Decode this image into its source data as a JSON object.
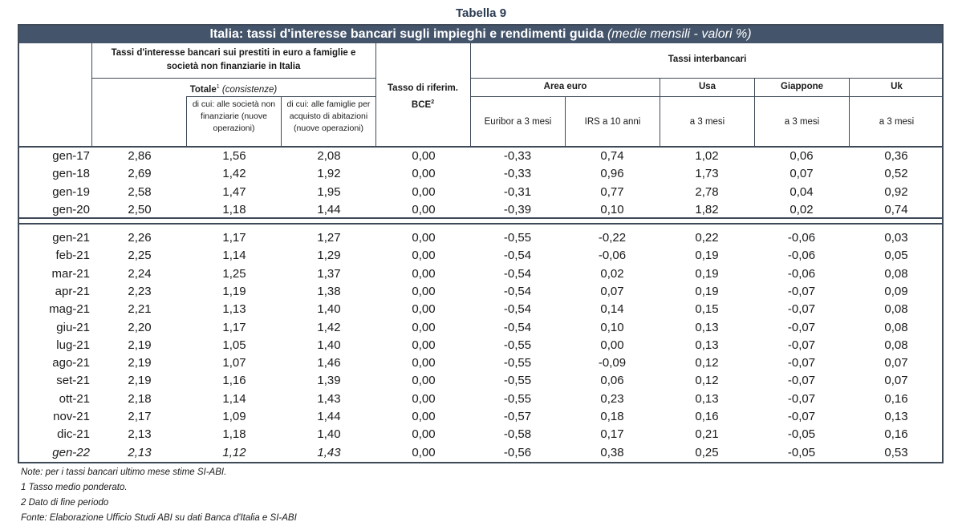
{
  "caption": "Tabella 9",
  "title": {
    "main": "Italia: tassi d'interesse bancari sugli impieghi e rendimenti guida",
    "sub": "(medie mensili - valori %)"
  },
  "headers": {
    "group_loans": "Tassi d'interesse bancari sui prestiti in euro a famiglie e società non finanziarie in Italia",
    "total": "Totale",
    "total_sup": "1",
    "total_note": "(consistenze)",
    "of_which_companies": "di cui: alle società non finanziarie (nuove operazioni)",
    "of_which_families": "di cui: alle famiglie per acquisto di abitazioni (nuove operazioni)",
    "bce": "Tasso di riferim. BCE",
    "bce_sup": "2",
    "interbank": "Tassi interbancari",
    "area_euro": "Area euro",
    "usa": "Usa",
    "giappone": "Giappone",
    "uk": "Uk",
    "euribor": "Euribor a 3 mesi",
    "irs": "IRS a 10 anni",
    "usa_sub": "a 3 mesi",
    "giappone_sub": "a 3 mesi",
    "uk_sub": "a 3 mesi"
  },
  "rows_annual": [
    {
      "label": "gen-17",
      "values": [
        "2,86",
        "1,56",
        "2,08",
        "0,00",
        "-0,33",
        "0,74",
        "1,02",
        "0,06",
        "0,36"
      ]
    },
    {
      "label": "gen-18",
      "values": [
        "2,69",
        "1,42",
        "1,92",
        "0,00",
        "-0,33",
        "0,96",
        "1,73",
        "0,07",
        "0,52"
      ]
    },
    {
      "label": "gen-19",
      "values": [
        "2,58",
        "1,47",
        "1,95",
        "0,00",
        "-0,31",
        "0,77",
        "2,78",
        "0,04",
        "0,92"
      ]
    },
    {
      "label": "gen-20",
      "values": [
        "2,50",
        "1,18",
        "1,44",
        "0,00",
        "-0,39",
        "0,10",
        "1,82",
        "0,02",
        "0,74"
      ]
    }
  ],
  "rows_monthly": [
    {
      "label": "gen-21",
      "values": [
        "2,26",
        "1,17",
        "1,27",
        "0,00",
        "-0,55",
        "-0,22",
        "0,22",
        "-0,06",
        "0,03"
      ]
    },
    {
      "label": "feb-21",
      "values": [
        "2,25",
        "1,14",
        "1,29",
        "0,00",
        "-0,54",
        "-0,06",
        "0,19",
        "-0,06",
        "0,05"
      ]
    },
    {
      "label": "mar-21",
      "values": [
        "2,24",
        "1,25",
        "1,37",
        "0,00",
        "-0,54",
        "0,02",
        "0,19",
        "-0,06",
        "0,08"
      ]
    },
    {
      "label": "apr-21",
      "values": [
        "2,23",
        "1,19",
        "1,38",
        "0,00",
        "-0,54",
        "0,07",
        "0,19",
        "-0,07",
        "0,09"
      ]
    },
    {
      "label": "mag-21",
      "values": [
        "2,21",
        "1,13",
        "1,40",
        "0,00",
        "-0,54",
        "0,14",
        "0,15",
        "-0,07",
        "0,08"
      ]
    },
    {
      "label": "giu-21",
      "values": [
        "2,20",
        "1,17",
        "1,42",
        "0,00",
        "-0,54",
        "0,10",
        "0,13",
        "-0,07",
        "0,08"
      ]
    },
    {
      "label": "lug-21",
      "values": [
        "2,19",
        "1,05",
        "1,40",
        "0,00",
        "-0,55",
        "0,00",
        "0,13",
        "-0,07",
        "0,08"
      ]
    },
    {
      "label": "ago-21",
      "values": [
        "2,19",
        "1,07",
        "1,46",
        "0,00",
        "-0,55",
        "-0,09",
        "0,12",
        "-0,07",
        "0,07"
      ]
    },
    {
      "label": "set-21",
      "values": [
        "2,19",
        "1,16",
        "1,39",
        "0,00",
        "-0,55",
        "0,06",
        "0,12",
        "-0,07",
        "0,07"
      ]
    },
    {
      "label": "ott-21",
      "values": [
        "2,18",
        "1,14",
        "1,43",
        "0,00",
        "-0,55",
        "0,23",
        "0,13",
        "-0,07",
        "0,16"
      ]
    },
    {
      "label": "nov-21",
      "values": [
        "2,17",
        "1,09",
        "1,44",
        "0,00",
        "-0,57",
        "0,18",
        "0,16",
        "-0,07",
        "0,13"
      ]
    },
    {
      "label": "dic-21",
      "values": [
        "2,13",
        "1,18",
        "1,40",
        "0,00",
        "-0,58",
        "0,17",
        "0,21",
        "-0,05",
        "0,16"
      ]
    },
    {
      "label": "gen-22",
      "values": [
        "2,13",
        "1,12",
        "1,43",
        "0,00",
        "-0,56",
        "0,38",
        "0,25",
        "-0,05",
        "0,53"
      ],
      "estimated": true
    }
  ],
  "notes": [
    "Note: per i tassi bancari ultimo mese stime SI-ABI.",
    "1 Tasso medio ponderato.",
    "2 Dato di fine periodo",
    "Fonte: Elaborazione Ufficio Studi ABI su dati Banca d'Italia e SI-ABI"
  ],
  "colors": {
    "title_bar": "#44546a",
    "border": "#3f4a59",
    "caption": "#2b3b52"
  }
}
